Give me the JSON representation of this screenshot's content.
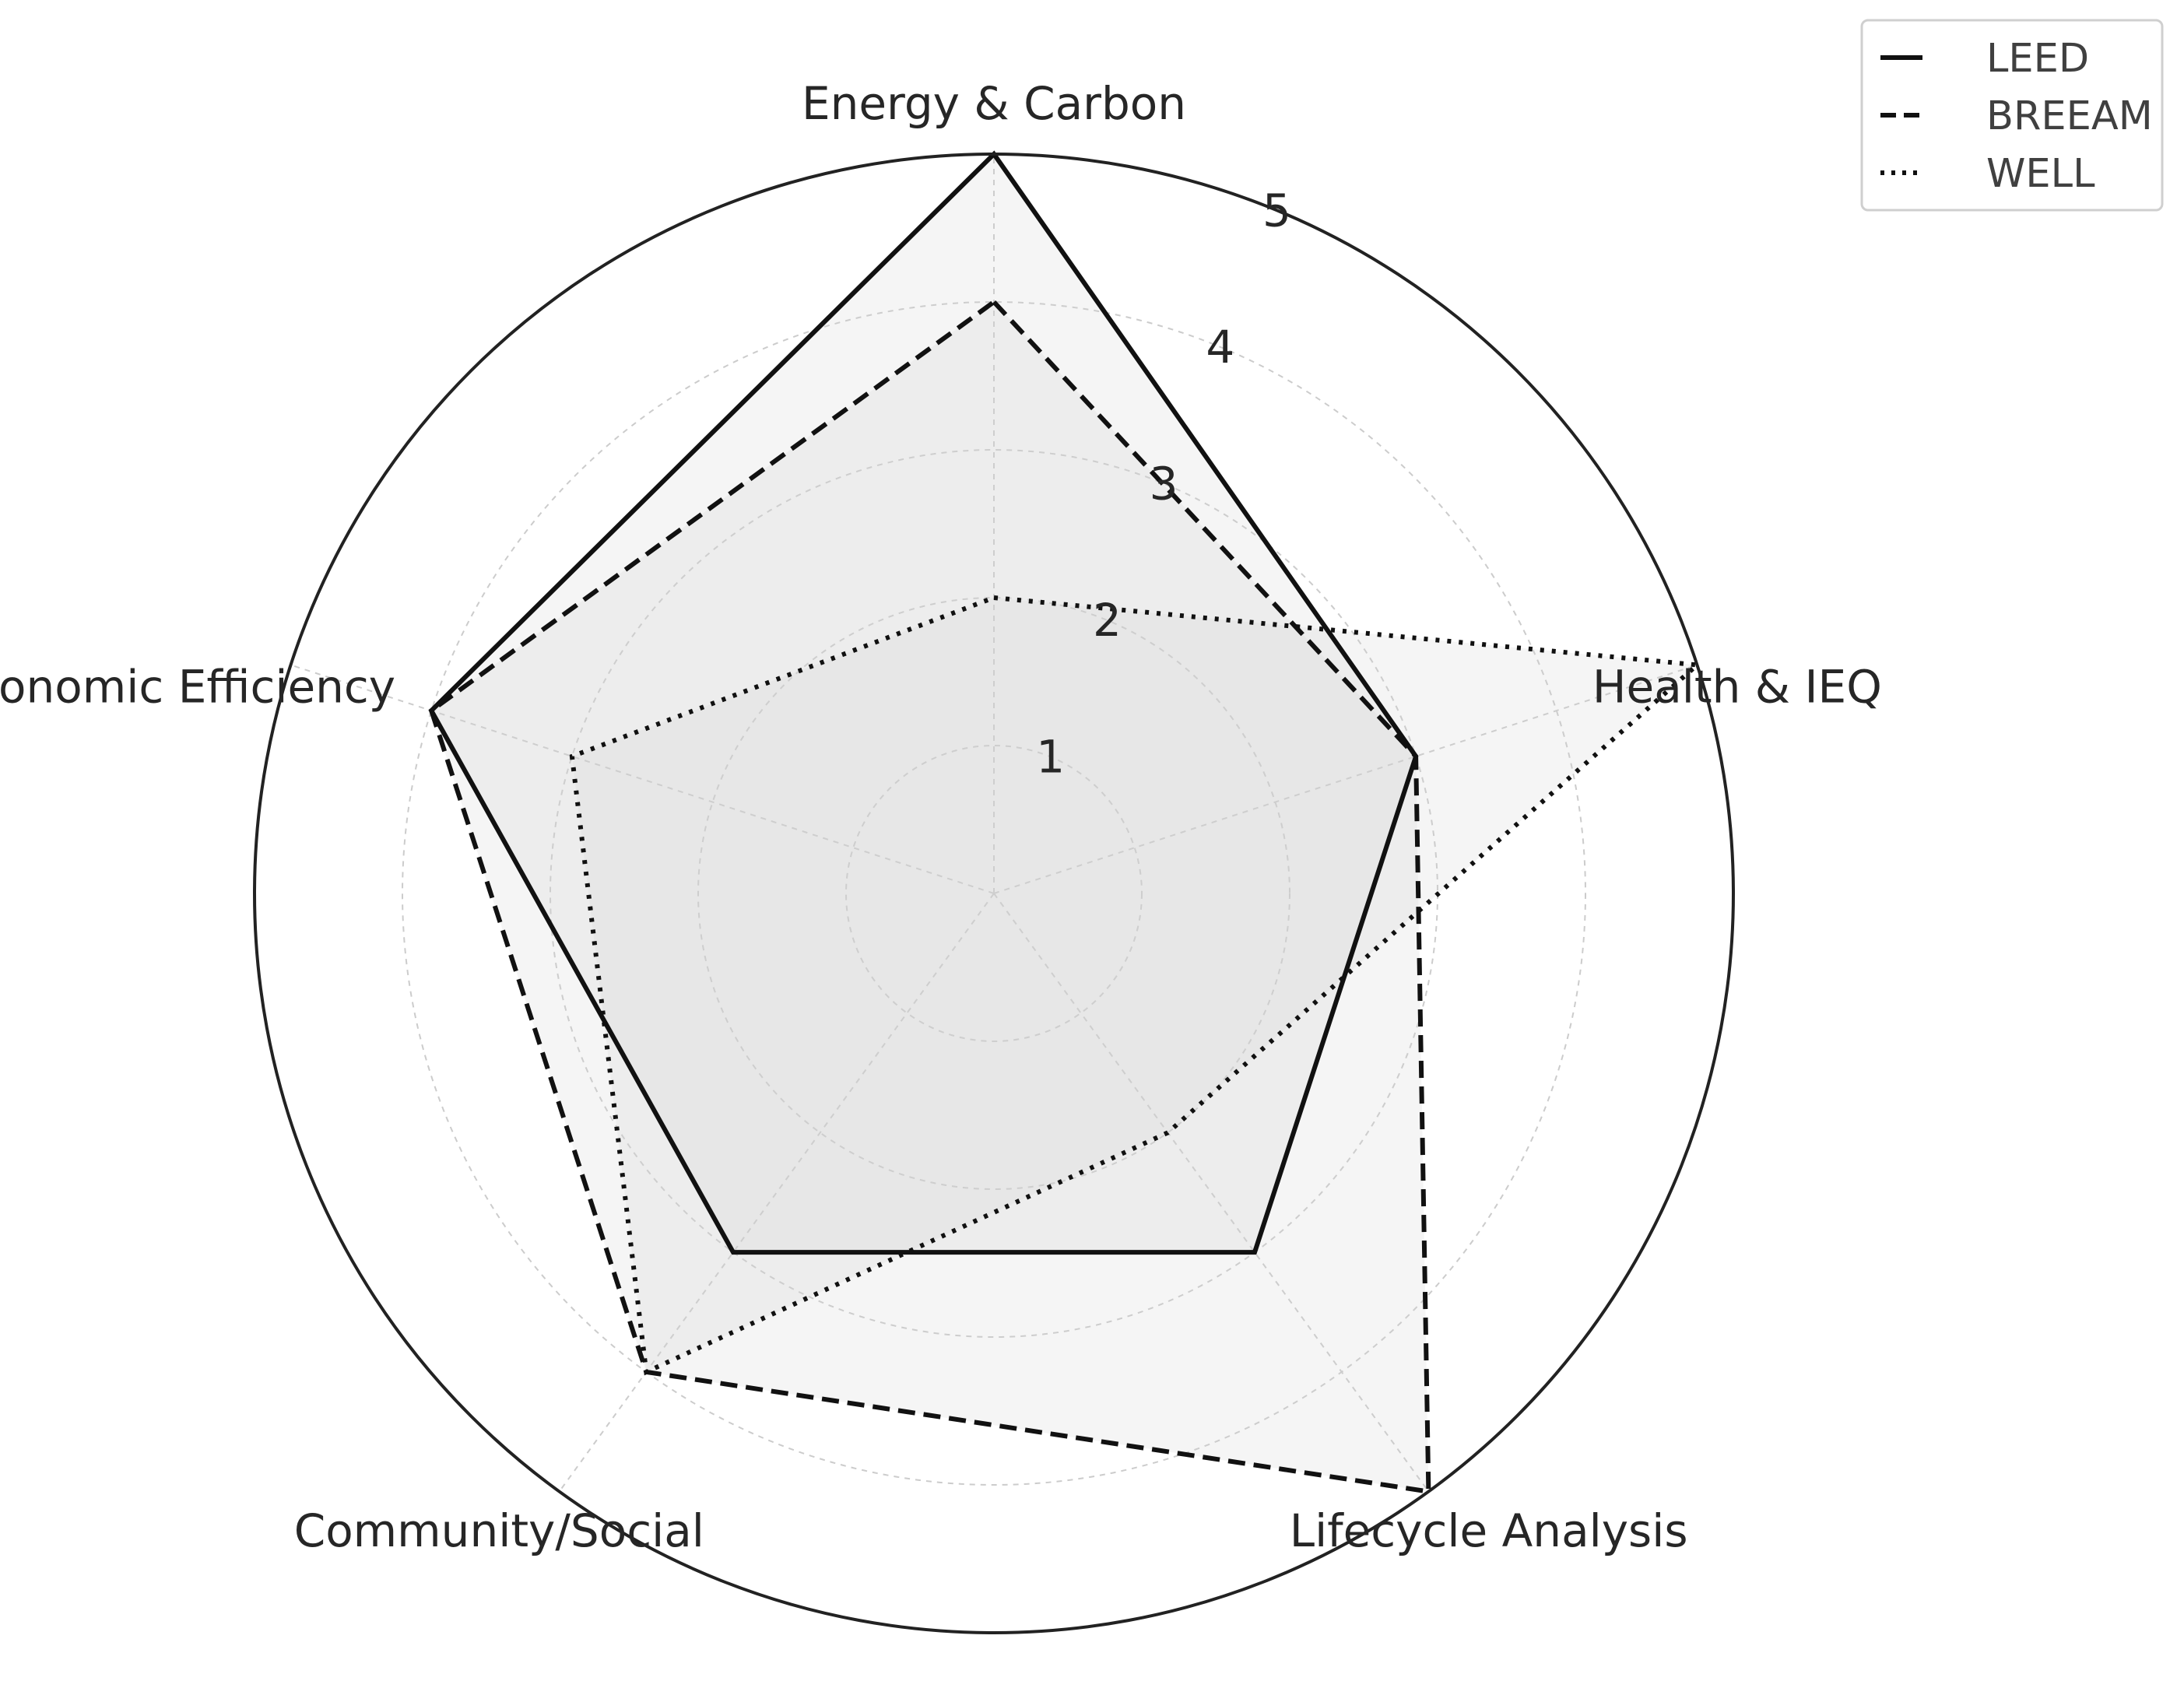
{
  "chart_data": {
    "type": "radar",
    "title": "",
    "axes": [
      "Energy & Carbon",
      "Health & IEQ",
      "Lifecycle Analysis",
      "Community/Social",
      "Economic Efficiency"
    ],
    "rlim": [
      0,
      5
    ],
    "rticks": [
      "1",
      "2",
      "3",
      "4",
      "5"
    ],
    "grid": true,
    "legend_position": "top-right",
    "series": [
      {
        "name": "LEED",
        "values": [
          5,
          3,
          3,
          3,
          4
        ],
        "line_style": "solid"
      },
      {
        "name": "BREEAM",
        "values": [
          4,
          3,
          5,
          4,
          4
        ],
        "line_style": "dashed"
      },
      {
        "name": "WELL",
        "values": [
          2,
          5,
          2,
          4,
          3
        ],
        "line_style": "dotted"
      }
    ],
    "colors": {
      "line": "#111111",
      "fill": "#d3d3d3",
      "grid": "#cccccc",
      "frame": "#222222"
    }
  }
}
